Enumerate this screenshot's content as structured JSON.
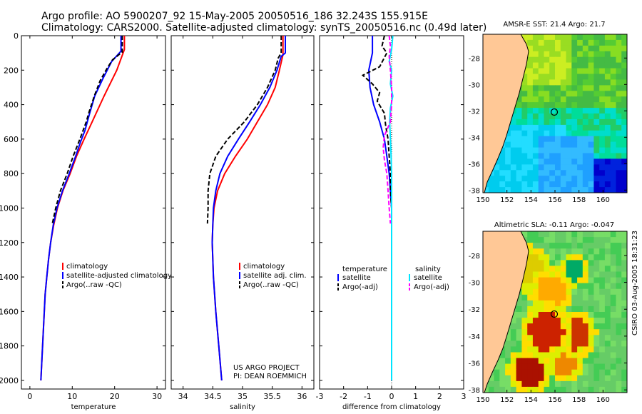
{
  "title_line1": "Argo profile: AO 5900207_92 15-May-2005 20050516_186 32.243S 155.915E",
  "title_line2": "Climatology: CARS2000. Satellite-adjusted climatology: synTS_20050516.nc (0.49d later)",
  "side_label": "CSIRO 03-Aug-2005 18:31:23",
  "project_line1": "US ARGO PROJECT",
  "project_line2": "PI: DEAN ROEMMICH",
  "colors": {
    "climatology": "#ff0000",
    "satellite": "#0000ff",
    "argo": "#000000",
    "sal_satellite": "#00e5ff",
    "sal_argo": "#ff00ff",
    "land": "#ffc896"
  },
  "chart_data": [
    {
      "type": "line",
      "name": "temperature",
      "xlabel": "temperature",
      "ylabel": "",
      "xlim": [
        -2,
        32
      ],
      "ylim": [
        0,
        2050
      ],
      "y_reversed": true,
      "xticks": [
        "0",
        "10",
        "20",
        "30"
      ],
      "yticks": [
        "0",
        "200",
        "400",
        "600",
        "800",
        "1000",
        "1200",
        "1400",
        "1600",
        "1800",
        "2000"
      ],
      "legend": [
        "climatology",
        "satellite-adjusted climatology",
        "Argo(..raw -QC)"
      ],
      "series": [
        {
          "name": "climatology",
          "color": "#ff0000",
          "dash": "",
          "points": [
            [
              22.3,
              0
            ],
            [
              22.3,
              80
            ],
            [
              20.5,
              200
            ],
            [
              17.5,
              350
            ],
            [
              14.7,
              500
            ],
            [
              12.8,
              600
            ],
            [
              11.0,
              700
            ],
            [
              9.5,
              800
            ],
            [
              7.8,
              900
            ],
            [
              6.5,
              1000
            ],
            [
              5.6,
              1100
            ],
            [
              4.9,
              1200
            ],
            [
              4.4,
              1300
            ],
            [
              4.0,
              1400
            ],
            [
              3.6,
              1500
            ],
            [
              3.4,
              1600
            ],
            [
              3.0,
              1800
            ],
            [
              2.6,
              2000
            ]
          ]
        },
        {
          "name": "satellite-adjusted climatology",
          "color": "#0000ff",
          "dash": "",
          "points": [
            [
              21.5,
              0
            ],
            [
              21.5,
              90
            ],
            [
              19.3,
              150
            ],
            [
              17.2,
              250
            ],
            [
              15.3,
              350
            ],
            [
              14.1,
              450
            ],
            [
              13.0,
              550
            ],
            [
              11.9,
              620
            ],
            [
              10.8,
              700
            ],
            [
              9.3,
              800
            ],
            [
              7.7,
              900
            ],
            [
              6.4,
              1000
            ],
            [
              5.5,
              1100
            ],
            [
              4.9,
              1200
            ],
            [
              4.4,
              1300
            ],
            [
              4.0,
              1400
            ],
            [
              3.6,
              1500
            ],
            [
              3.4,
              1600
            ],
            [
              3.0,
              1800
            ],
            [
              2.6,
              2000
            ]
          ]
        },
        {
          "name": "Argo(..raw -QC)",
          "color": "#000000",
          "dash": "6,3",
          "points": [
            [
              21.8,
              0
            ],
            [
              21.8,
              95
            ],
            [
              19.5,
              140
            ],
            [
              18.2,
              190
            ],
            [
              16.6,
              260
            ],
            [
              15.2,
              350
            ],
            [
              14.0,
              440
            ],
            [
              13.3,
              500
            ],
            [
              11.8,
              600
            ],
            [
              10.2,
              700
            ],
            [
              8.8,
              800
            ],
            [
              7.2,
              900
            ],
            [
              6.1,
              1000
            ],
            [
              5.3,
              1090
            ]
          ]
        }
      ]
    },
    {
      "type": "line",
      "name": "salinity",
      "xlabel": "salinity",
      "ylabel": "",
      "xlim": [
        33.8,
        36.2
      ],
      "ylim": [
        0,
        2050
      ],
      "y_reversed": true,
      "xticks": [
        "34",
        "34.5",
        "35",
        "35.5",
        "36"
      ],
      "legend": [
        "climatology",
        "satellite adj. clim.",
        "Argo(..raw -QC)"
      ],
      "series": [
        {
          "name": "climatology",
          "color": "#ff0000",
          "dash": "",
          "points": [
            [
              35.68,
              0
            ],
            [
              35.68,
              110
            ],
            [
              35.62,
              200
            ],
            [
              35.55,
              300
            ],
            [
              35.42,
              400
            ],
            [
              35.25,
              500
            ],
            [
              35.08,
              600
            ],
            [
              34.88,
              700
            ],
            [
              34.7,
              800
            ],
            [
              34.58,
              900
            ],
            [
              34.52,
              1000
            ],
            [
              34.5,
              1100
            ],
            [
              34.49,
              1200
            ],
            [
              34.51,
              1400
            ],
            [
              34.55,
              1600
            ],
            [
              34.6,
              1800
            ],
            [
              34.65,
              2000
            ]
          ]
        },
        {
          "name": "satellite adj. clim.",
          "color": "#0000ff",
          "dash": "",
          "points": [
            [
              35.72,
              0
            ],
            [
              35.72,
              100
            ],
            [
              35.65,
              120
            ],
            [
              35.58,
              200
            ],
            [
              35.46,
              300
            ],
            [
              35.3,
              400
            ],
            [
              35.12,
              500
            ],
            [
              34.93,
              600
            ],
            [
              34.75,
              700
            ],
            [
              34.62,
              800
            ],
            [
              34.55,
              900
            ],
            [
              34.51,
              1000
            ],
            [
              34.5,
              1100
            ],
            [
              34.49,
              1200
            ],
            [
              34.51,
              1400
            ],
            [
              34.55,
              1600
            ],
            [
              34.6,
              1800
            ],
            [
              34.65,
              2000
            ]
          ]
        },
        {
          "name": "Argo(..raw -QC)",
          "color": "#000000",
          "dash": "6,3",
          "points": [
            [
              35.65,
              0
            ],
            [
              35.65,
              100
            ],
            [
              35.6,
              130
            ],
            [
              35.55,
              200
            ],
            [
              35.42,
              300
            ],
            [
              35.25,
              400
            ],
            [
              35.03,
              500
            ],
            [
              34.75,
              600
            ],
            [
              34.55,
              700
            ],
            [
              34.45,
              800
            ],
            [
              34.42,
              900
            ],
            [
              34.42,
              1000
            ],
            [
              34.41,
              1090
            ]
          ]
        }
      ]
    },
    {
      "type": "line",
      "name": "difference from climatology",
      "xlabel": "difference from climatology",
      "ylabel": "",
      "xlim": [
        -3,
        3
      ],
      "ylim": [
        0,
        2050
      ],
      "y_reversed": true,
      "xticks": [
        "-3",
        "-2",
        "-1",
        "0",
        "1",
        "2",
        "3"
      ],
      "legend_left_title": "temperature",
      "legend_right_title": "salinity",
      "legend": [
        "satellite",
        "Argo(-adj)",
        "satellite",
        "Argo(-adj)"
      ],
      "series": [
        {
          "name": "temperature satellite",
          "color": "#0000ff",
          "dash": "",
          "points": [
            [
              -0.8,
              0
            ],
            [
              -0.8,
              100
            ],
            [
              -0.95,
              200
            ],
            [
              -0.9,
              300
            ],
            [
              -0.75,
              400
            ],
            [
              -0.5,
              500
            ],
            [
              -0.3,
              600
            ],
            [
              -0.2,
              700
            ],
            [
              -0.1,
              800
            ],
            [
              -0.05,
              900
            ],
            [
              0,
              1000
            ],
            [
              0,
              2000
            ]
          ]
        },
        {
          "name": "temperature Argo(-adj)",
          "color": "#000000",
          "dash": "6,3",
          "points": [
            [
              -0.3,
              0
            ],
            [
              -0.4,
              60
            ],
            [
              -0.2,
              100
            ],
            [
              -0.5,
              180
            ],
            [
              -1.2,
              230
            ],
            [
              -0.8,
              280
            ],
            [
              -0.5,
              330
            ],
            [
              -0.6,
              380
            ],
            [
              -0.3,
              450
            ],
            [
              -0.25,
              520
            ],
            [
              -0.15,
              600
            ],
            [
              -0.1,
              700
            ],
            [
              -0.05,
              800
            ],
            [
              -0.05,
              900
            ],
            [
              0,
              1000
            ],
            [
              0,
              1090
            ]
          ]
        },
        {
          "name": "salinity satellite",
          "color": "#00e5ff",
          "dash": "",
          "points": [
            [
              0.05,
              0
            ],
            [
              0.0,
              80
            ],
            [
              -0.1,
              150
            ],
            [
              0.0,
              200
            ],
            [
              -0.05,
              280
            ],
            [
              0.05,
              350
            ],
            [
              -0.05,
              420
            ],
            [
              -0.08,
              500
            ],
            [
              -0.05,
              600
            ],
            [
              -0.02,
              700
            ],
            [
              0,
              800
            ],
            [
              0,
              2000
            ]
          ]
        },
        {
          "name": "salinity Argo(-adj)",
          "color": "#ff00ff",
          "dash": "6,3",
          "points": [
            [
              -0.1,
              0
            ],
            [
              -0.05,
              60
            ],
            [
              -0.1,
              120
            ],
            [
              -0.05,
              200
            ],
            [
              0,
              300
            ],
            [
              0,
              400
            ],
            [
              -0.05,
              500
            ],
            [
              -0.3,
              580
            ],
            [
              -0.35,
              650
            ],
            [
              -0.3,
              720
            ],
            [
              -0.2,
              800
            ],
            [
              -0.15,
              900
            ],
            [
              -0.1,
              1000
            ],
            [
              -0.05,
              1090
            ]
          ]
        }
      ]
    },
    {
      "type": "heatmap",
      "name": "sst-map",
      "title": "AMSR-E SST: 21.4 Argo: 21.7",
      "xlim": [
        150,
        162
      ],
      "ylim": [
        -38.2,
        -26.2
      ],
      "xticks": [
        "150",
        "152",
        "154",
        "156",
        "158",
        "160"
      ],
      "yticks": [
        "-28",
        "-30",
        "-32",
        "-34",
        "-36",
        "-38"
      ],
      "marker": {
        "lon": 155.9,
        "lat": -32.24
      }
    },
    {
      "type": "heatmap",
      "name": "sla-map",
      "title": "Altimetric SLA: -0.11 Argo: -0.047",
      "xlim": [
        150,
        162
      ],
      "ylim": [
        -38.2,
        -26.2
      ],
      "xticks": [
        "150",
        "152",
        "154",
        "156",
        "158",
        "160"
      ],
      "yticks": [
        "-28",
        "-30",
        "-32",
        "-34",
        "-36",
        "-38"
      ],
      "marker": {
        "lon": 155.9,
        "lat": -32.24
      }
    }
  ]
}
